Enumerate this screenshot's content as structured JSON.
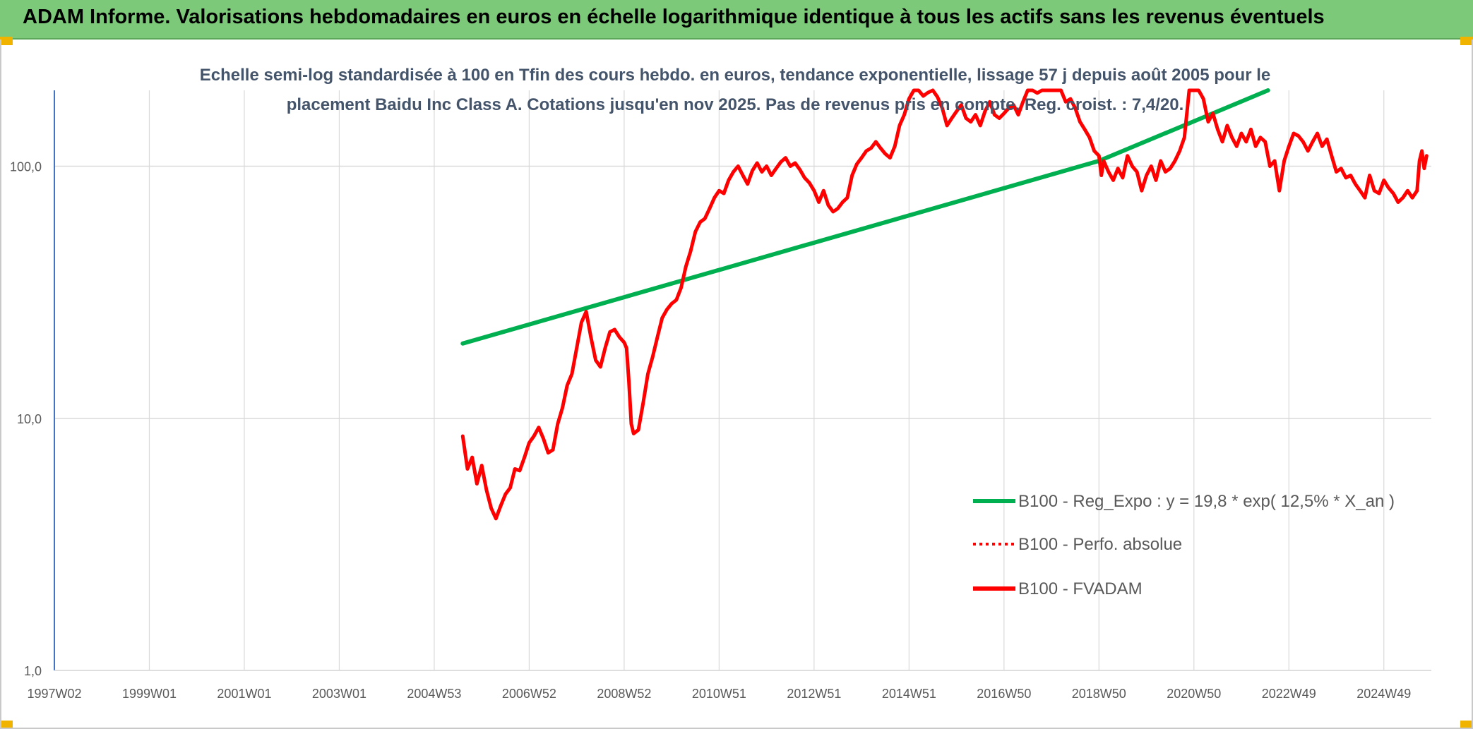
{
  "header": {
    "title": "ADAM Informe. Valorisations hebdomadaires en euros en échelle logarithmique identique à tous les actifs sans les revenus éventuels"
  },
  "colors": {
    "header_bg": "#7dc97a",
    "trend": "#00b050",
    "series": "#ff0000",
    "grid": "#d9d9d9",
    "axis": "#4472c4",
    "accent_corners": "#f0b400"
  },
  "chart_data": {
    "type": "line",
    "y_scale": "log",
    "ylim": [
      1,
      200
    ],
    "xlim": [
      "1997W02",
      "2025W48"
    ],
    "subtitle_lines": [
      "Echelle semi-log standardisée à 100 en Tfin des cours hebdo. en euros, tendance exponentielle, lissage 57 j depuis août 2005 pour le",
      "placement Baidu Inc Class A. Cotations jusqu'en nov 2025. Pas de revenus pris en compte. Reg. croist. : 7,4/20."
    ],
    "y_ticks": [
      {
        "value": 1,
        "label": "1,0"
      },
      {
        "value": 10,
        "label": "10,0"
      },
      {
        "value": 100,
        "label": "100,0"
      }
    ],
    "x_ticks": [
      {
        "value": 1997.0,
        "label": "1997W02"
      },
      {
        "value": 1999.0,
        "label": "1999W01"
      },
      {
        "value": 2001.0,
        "label": "2001W01"
      },
      {
        "value": 2003.0,
        "label": "2003W01"
      },
      {
        "value": 2005.0,
        "label": "2004W53"
      },
      {
        "value": 2007.0,
        "label": "2006W52"
      },
      {
        "value": 2009.0,
        "label": "2008W52"
      },
      {
        "value": 2011.0,
        "label": "2010W51"
      },
      {
        "value": 2013.0,
        "label": "2012W51"
      },
      {
        "value": 2015.0,
        "label": "2014W51"
      },
      {
        "value": 2017.0,
        "label": "2016W50"
      },
      {
        "value": 2019.0,
        "label": "2018W50"
      },
      {
        "value": 2021.0,
        "label": "2020W50"
      },
      {
        "value": 2023.0,
        "label": "2022W49"
      },
      {
        "value": 2025.0,
        "label": "2024W49"
      }
    ],
    "legend": {
      "placement": "bottom-right",
      "entries": [
        {
          "label": "B100 - Reg_Expo : y = 19,8 * exp( 12,5% *  X_an )",
          "style": "solid-green"
        },
        {
          "label": "B100 - Perfo. absolue",
          "style": "dotted-red"
        },
        {
          "label": "B100 - FVADAM",
          "style": "solid-red"
        }
      ]
    },
    "series": [
      {
        "name": "B100 - Reg_Expo : y = 19,8 * exp( 12,5% *  X_an )",
        "color": "#00b050",
        "points": [
          [
            2005.6,
            19.8
          ],
          [
            2019.0,
            105.0
          ],
          [
            2022.56,
            200.0
          ]
        ]
      },
      {
        "name": "B100 - FVADAM",
        "color": "#ff0000",
        "points": [
          [
            2005.6,
            8.5
          ],
          [
            2005.7,
            6.3
          ],
          [
            2005.8,
            7.0
          ],
          [
            2005.9,
            5.5
          ],
          [
            2006.0,
            6.5
          ],
          [
            2006.1,
            5.2
          ],
          [
            2006.2,
            4.4
          ],
          [
            2006.3,
            4.0
          ],
          [
            2006.4,
            4.5
          ],
          [
            2006.5,
            5.0
          ],
          [
            2006.6,
            5.3
          ],
          [
            2006.7,
            6.3
          ],
          [
            2006.8,
            6.2
          ],
          [
            2006.9,
            7.0
          ],
          [
            2007.0,
            8.0
          ],
          [
            2007.1,
            8.5
          ],
          [
            2007.2,
            9.2
          ],
          [
            2007.3,
            8.3
          ],
          [
            2007.4,
            7.3
          ],
          [
            2007.5,
            7.5
          ],
          [
            2007.6,
            9.5
          ],
          [
            2007.7,
            11.0
          ],
          [
            2007.8,
            13.5
          ],
          [
            2007.9,
            15.0
          ],
          [
            2008.0,
            19.0
          ],
          [
            2008.1,
            24.0
          ],
          [
            2008.2,
            26.5
          ],
          [
            2008.3,
            21.0
          ],
          [
            2008.4,
            17.0
          ],
          [
            2008.5,
            16.0
          ],
          [
            2008.6,
            19.0
          ],
          [
            2008.7,
            22.0
          ],
          [
            2008.8,
            22.5
          ],
          [
            2008.9,
            21.0
          ],
          [
            2009.0,
            20.0
          ],
          [
            2009.05,
            19.0
          ],
          [
            2009.1,
            14.0
          ],
          [
            2009.15,
            9.5
          ],
          [
            2009.2,
            8.7
          ],
          [
            2009.3,
            9.0
          ],
          [
            2009.4,
            11.5
          ],
          [
            2009.5,
            15.0
          ],
          [
            2009.6,
            17.5
          ],
          [
            2009.7,
            21.0
          ],
          [
            2009.8,
            25.0
          ],
          [
            2009.9,
            27.0
          ],
          [
            2010.0,
            28.5
          ],
          [
            2010.1,
            29.5
          ],
          [
            2010.2,
            33.0
          ],
          [
            2010.3,
            40.0
          ],
          [
            2010.4,
            46.0
          ],
          [
            2010.5,
            55.0
          ],
          [
            2010.6,
            60.0
          ],
          [
            2010.7,
            62.0
          ],
          [
            2010.8,
            68.0
          ],
          [
            2010.9,
            75.0
          ],
          [
            2011.0,
            80.0
          ],
          [
            2011.1,
            78.0
          ],
          [
            2011.2,
            88.0
          ],
          [
            2011.3,
            95.0
          ],
          [
            2011.4,
            100.0
          ],
          [
            2011.5,
            92.0
          ],
          [
            2011.6,
            85.0
          ],
          [
            2011.7,
            96.0
          ],
          [
            2011.8,
            103.0
          ],
          [
            2011.9,
            95.0
          ],
          [
            2012.0,
            100.0
          ],
          [
            2012.1,
            92.0
          ],
          [
            2012.2,
            98.0
          ],
          [
            2012.3,
            104.0
          ],
          [
            2012.4,
            108.0
          ],
          [
            2012.5,
            100.0
          ],
          [
            2012.6,
            103.0
          ],
          [
            2012.7,
            97.0
          ],
          [
            2012.8,
            90.0
          ],
          [
            2012.9,
            86.0
          ],
          [
            2013.0,
            80.0
          ],
          [
            2013.1,
            72.0
          ],
          [
            2013.2,
            80.0
          ],
          [
            2013.3,
            70.0
          ],
          [
            2013.4,
            66.0
          ],
          [
            2013.5,
            68.0
          ],
          [
            2013.6,
            72.0
          ],
          [
            2013.7,
            75.0
          ],
          [
            2013.8,
            92.0
          ],
          [
            2013.9,
            102.0
          ],
          [
            2014.0,
            108.0
          ],
          [
            2014.1,
            115.0
          ],
          [
            2014.2,
            118.0
          ],
          [
            2014.3,
            125.0
          ],
          [
            2014.4,
            118.0
          ],
          [
            2014.5,
            112.0
          ],
          [
            2014.6,
            108.0
          ],
          [
            2014.7,
            120.0
          ],
          [
            2014.8,
            145.0
          ],
          [
            2014.9,
            160.0
          ],
          [
            2015.0,
            185.0
          ],
          [
            2015.1,
            200.0
          ],
          [
            2015.2,
            200.0
          ],
          [
            2015.3,
            190.0
          ],
          [
            2015.4,
            196.0
          ],
          [
            2015.5,
            200.0
          ],
          [
            2015.6,
            188.0
          ],
          [
            2015.7,
            170.0
          ],
          [
            2015.8,
            145.0
          ],
          [
            2015.9,
            155.0
          ],
          [
            2016.0,
            165.0
          ],
          [
            2016.1,
            175.0
          ],
          [
            2016.2,
            155.0
          ],
          [
            2016.3,
            150.0
          ],
          [
            2016.4,
            160.0
          ],
          [
            2016.5,
            145.0
          ],
          [
            2016.6,
            165.0
          ],
          [
            2016.7,
            180.0
          ],
          [
            2016.8,
            160.0
          ],
          [
            2016.9,
            155.0
          ],
          [
            2017.0,
            162.0
          ],
          [
            2017.1,
            170.0
          ],
          [
            2017.2,
            175.0
          ],
          [
            2017.3,
            160.0
          ],
          [
            2017.4,
            180.0
          ],
          [
            2017.5,
            200.0
          ],
          [
            2017.6,
            200.0
          ],
          [
            2017.7,
            195.0
          ],
          [
            2017.8,
            200.0
          ],
          [
            2017.9,
            200.0
          ],
          [
            2018.0,
            200.0
          ],
          [
            2018.1,
            200.0
          ],
          [
            2018.2,
            200.0
          ],
          [
            2018.3,
            180.0
          ],
          [
            2018.4,
            185.0
          ],
          [
            2018.5,
            170.0
          ],
          [
            2018.6,
            150.0
          ],
          [
            2018.7,
            140.0
          ],
          [
            2018.8,
            130.0
          ],
          [
            2018.9,
            115.0
          ],
          [
            2019.0,
            110.0
          ],
          [
            2019.05,
            92.0
          ],
          [
            2019.1,
            105.0
          ],
          [
            2019.2,
            95.0
          ],
          [
            2019.3,
            88.0
          ],
          [
            2019.4,
            98.0
          ],
          [
            2019.5,
            90.0
          ],
          [
            2019.6,
            110.0
          ],
          [
            2019.7,
            100.0
          ],
          [
            2019.8,
            95.0
          ],
          [
            2019.9,
            80.0
          ],
          [
            2020.0,
            92.0
          ],
          [
            2020.1,
            100.0
          ],
          [
            2020.2,
            88.0
          ],
          [
            2020.3,
            105.0
          ],
          [
            2020.4,
            95.0
          ],
          [
            2020.5,
            98.0
          ],
          [
            2020.6,
            105.0
          ],
          [
            2020.7,
            115.0
          ],
          [
            2020.8,
            130.0
          ],
          [
            2020.9,
            200.0
          ],
          [
            2021.0,
            200.0
          ],
          [
            2021.1,
            200.0
          ],
          [
            2021.2,
            185.0
          ],
          [
            2021.3,
            150.0
          ],
          [
            2021.4,
            162.0
          ],
          [
            2021.5,
            140.0
          ],
          [
            2021.6,
            125.0
          ],
          [
            2021.7,
            145.0
          ],
          [
            2021.8,
            130.0
          ],
          [
            2021.9,
            120.0
          ],
          [
            2022.0,
            135.0
          ],
          [
            2022.1,
            125.0
          ],
          [
            2022.2,
            140.0
          ],
          [
            2022.3,
            120.0
          ],
          [
            2022.4,
            130.0
          ],
          [
            2022.5,
            125.0
          ],
          [
            2022.6,
            100.0
          ],
          [
            2022.7,
            105.0
          ],
          [
            2022.8,
            80.0
          ],
          [
            2022.9,
            105.0
          ],
          [
            2023.0,
            120.0
          ],
          [
            2023.1,
            135.0
          ],
          [
            2023.2,
            132.0
          ],
          [
            2023.3,
            125.0
          ],
          [
            2023.4,
            115.0
          ],
          [
            2023.5,
            125.0
          ],
          [
            2023.6,
            135.0
          ],
          [
            2023.7,
            120.0
          ],
          [
            2023.8,
            128.0
          ],
          [
            2023.9,
            110.0
          ],
          [
            2024.0,
            95.0
          ],
          [
            2024.1,
            98.0
          ],
          [
            2024.2,
            90.0
          ],
          [
            2024.3,
            92.0
          ],
          [
            2024.4,
            85.0
          ],
          [
            2024.5,
            80.0
          ],
          [
            2024.6,
            75.0
          ],
          [
            2024.7,
            92.0
          ],
          [
            2024.8,
            80.0
          ],
          [
            2024.9,
            78.0
          ],
          [
            2025.0,
            88.0
          ],
          [
            2025.1,
            82.0
          ],
          [
            2025.2,
            78.0
          ],
          [
            2025.3,
            72.0
          ],
          [
            2025.4,
            75.0
          ],
          [
            2025.5,
            80.0
          ],
          [
            2025.6,
            75.0
          ],
          [
            2025.7,
            80.0
          ],
          [
            2025.75,
            105.0
          ],
          [
            2025.8,
            115.0
          ],
          [
            2025.85,
            98.0
          ],
          [
            2025.9,
            110.0
          ]
        ]
      }
    ]
  }
}
